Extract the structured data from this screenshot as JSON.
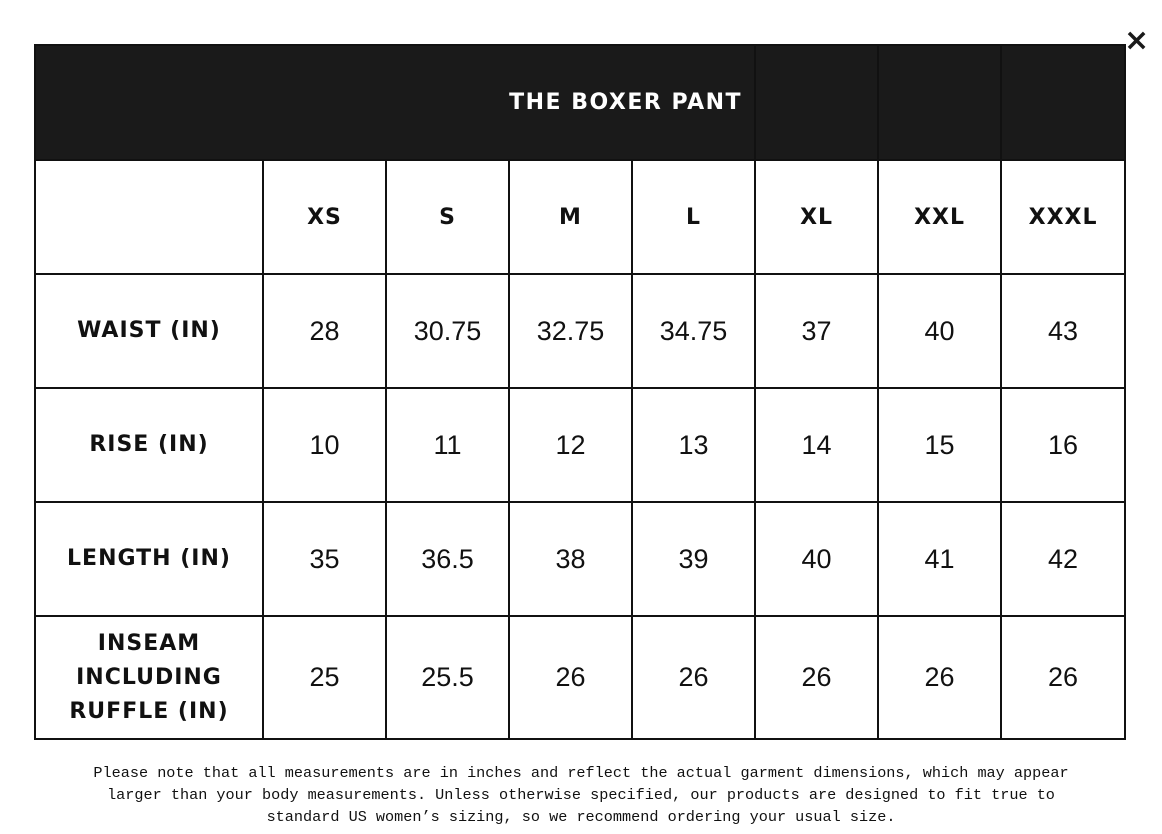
{
  "close_label": "×",
  "title": "THE BOXER PANT",
  "sizes": [
    "XS",
    "S",
    "M",
    "L",
    "XL",
    "XXL",
    "XXXL"
  ],
  "rows": [
    {
      "label": "WAIST (IN)",
      "values": [
        "28",
        "30.75",
        "32.75",
        "34.75",
        "37",
        "40",
        "43"
      ]
    },
    {
      "label": "RISE (IN)",
      "values": [
        "10",
        "11",
        "12",
        "13",
        "14",
        "15",
        "16"
      ]
    },
    {
      "label": "LENGTH (IN)",
      "values": [
        "35",
        "36.5",
        "38",
        "39",
        "40",
        "41",
        "42"
      ]
    },
    {
      "label": "INSEAM INCLUDING RUFFLE (IN)",
      "values": [
        "25",
        "25.5",
        "26",
        "26",
        "26",
        "26",
        "26"
      ]
    }
  ],
  "note_lines": [
    "Please note that all measurements are in inches and reflect the actual garment dimensions, which may appear",
    "larger than your body measurements. Unless otherwise specified, our products are designed to fit true to",
    "standard US women’s sizing, so we recommend ordering your usual size."
  ]
}
